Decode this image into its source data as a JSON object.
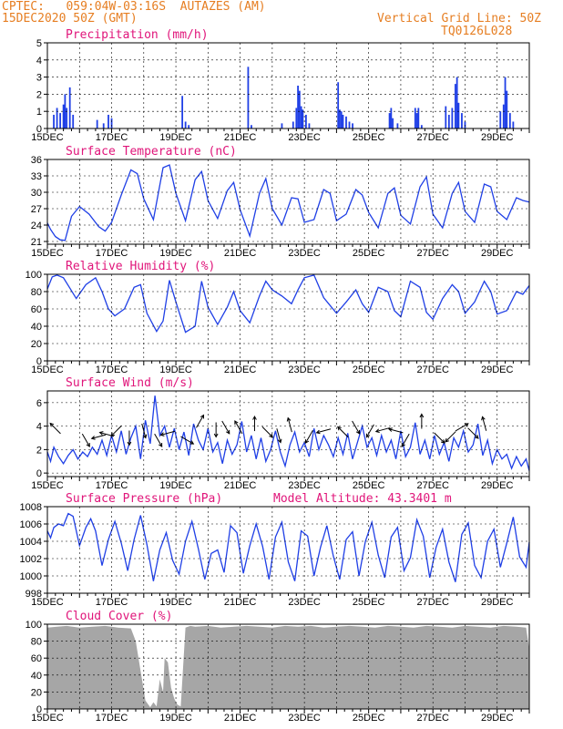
{
  "header": {
    "source": "CPTEC:",
    "location": "059:04W-03:16S  AUTAZES (AM)",
    "run": "15DEC2020 50Z (GMT)",
    "grid_note": "Vertical Grid Line: 50Z",
    "code": "TQ0126L028"
  },
  "colors": {
    "line": "#1f3fe6",
    "title": "#e0157a",
    "header": "#e67e22",
    "cloud": "#a6a6a6"
  },
  "chart_data": [
    {
      "type": "bar",
      "title": "Precipitation (mm/h)",
      "xlabel": "",
      "ylabel": "",
      "xlim": [
        0,
        15
      ],
      "ylim": [
        0,
        5
      ],
      "yticks": [
        "0",
        "1",
        "2",
        "3",
        "4",
        "5"
      ],
      "xticks": [
        "15DEC",
        "17DEC",
        "19DEC",
        "21DEC",
        "23DEC",
        "25DEC",
        "27DEC",
        "29DEC"
      ],
      "x": [
        0.2,
        0.3,
        0.4,
        0.5,
        0.55,
        0.6,
        0.7,
        0.8,
        1.55,
        1.75,
        1.9,
        2.0,
        4.2,
        4.3,
        4.4,
        6.25,
        6.35,
        7.3,
        7.65,
        7.75,
        7.8,
        7.85,
        7.9,
        7.95,
        8.05,
        8.15,
        9.05,
        9.1,
        9.15,
        9.2,
        9.3,
        9.4,
        9.5,
        10.65,
        10.7,
        10.75,
        10.9,
        11.45,
        11.5,
        11.55,
        11.65,
        12.4,
        12.5,
        12.6,
        12.7,
        12.75,
        12.8,
        12.9,
        13.0,
        14.1,
        14.2,
        14.25,
        14.3,
        14.4,
        14.5
      ],
      "values": [
        0.8,
        1.2,
        0.9,
        1.4,
        2.0,
        1.2,
        2.4,
        0.8,
        0.5,
        0.3,
        0.8,
        0.6,
        1.9,
        0.4,
        0.2,
        3.6,
        0.2,
        0.3,
        0.4,
        1.2,
        2.5,
        2.2,
        1.3,
        1.1,
        0.8,
        0.3,
        2.7,
        1.1,
        1.0,
        0.8,
        0.7,
        0.4,
        0.3,
        0.9,
        1.2,
        0.6,
        0.3,
        1.2,
        0.9,
        1.2,
        0.2,
        1.3,
        0.8,
        1.2,
        2.6,
        3.0,
        1.5,
        0.9,
        0.4,
        1.0,
        1.4,
        3.0,
        2.2,
        0.9,
        0.4
      ]
    },
    {
      "type": "line",
      "title": "Surface Temperature (nC)",
      "xlabel": "",
      "ylabel": "",
      "xlim": [
        0,
        15
      ],
      "ylim": [
        20.5,
        36
      ],
      "yticks": [
        "21",
        "24",
        "27",
        "30",
        "33",
        "36"
      ],
      "xticks": [
        "15DEC",
        "17DEC",
        "19DEC",
        "21DEC",
        "23DEC",
        "25DEC",
        "27DEC",
        "29DEC"
      ],
      "x": [
        0,
        0.1,
        0.25,
        0.4,
        0.55,
        0.75,
        1.0,
        1.3,
        1.6,
        1.8,
        2.0,
        2.3,
        2.6,
        2.8,
        3.0,
        3.3,
        3.6,
        3.8,
        4.0,
        4.3,
        4.6,
        4.8,
        5.0,
        5.3,
        5.6,
        5.8,
        6.0,
        6.3,
        6.6,
        6.8,
        7.0,
        7.3,
        7.6,
        7.8,
        8.0,
        8.3,
        8.6,
        8.8,
        9.0,
        9.3,
        9.6,
        9.8,
        10.0,
        10.3,
        10.6,
        10.8,
        11.0,
        11.3,
        11.6,
        11.8,
        12.0,
        12.3,
        12.6,
        12.8,
        13.0,
        13.3,
        13.6,
        13.8,
        14.0,
        14.3,
        14.6,
        14.8,
        15.0
      ],
      "values": [
        24.4,
        23.2,
        21.9,
        21.3,
        21.2,
        25.6,
        27.4,
        26.0,
        23.7,
        22.9,
        24.5,
        29.5,
        34.1,
        33.4,
        28.8,
        25.0,
        34.5,
        35.0,
        29.8,
        24.8,
        32.3,
        33.8,
        28.5,
        25.2,
        30.3,
        31.8,
        26.8,
        22.0,
        29.8,
        32.5,
        27.0,
        24.0,
        29.0,
        28.8,
        24.5,
        25.0,
        30.5,
        29.8,
        24.8,
        26.0,
        30.5,
        29.5,
        26.3,
        23.5,
        29.8,
        30.8,
        25.8,
        24.2,
        31.0,
        32.8,
        26.0,
        23.5,
        29.8,
        31.8,
        26.5,
        24.5,
        31.5,
        31.0,
        26.5,
        25.0,
        29.0,
        28.5,
        28.2
      ]
    },
    {
      "type": "line",
      "title": "Relative Humidity (%)",
      "xlabel": "",
      "ylabel": "",
      "xlim": [
        0,
        15
      ],
      "ylim": [
        0,
        100
      ],
      "yticks": [
        "0",
        "20",
        "40",
        "60",
        "80",
        "100"
      ],
      "xticks": [
        "15DEC",
        "17DEC",
        "19DEC",
        "21DEC",
        "23DEC",
        "25DEC",
        "27DEC",
        "29DEC"
      ],
      "x": [
        0,
        0.15,
        0.3,
        0.5,
        0.7,
        0.9,
        1.2,
        1.5,
        1.7,
        1.9,
        2.1,
        2.4,
        2.7,
        2.9,
        3.1,
        3.4,
        3.6,
        3.8,
        4.0,
        4.3,
        4.6,
        4.8,
        5.0,
        5.3,
        5.6,
        5.8,
        6.0,
        6.3,
        6.6,
        6.8,
        7.0,
        7.3,
        7.6,
        7.8,
        8.0,
        8.3,
        8.6,
        8.8,
        9.0,
        9.3,
        9.6,
        9.8,
        10.0,
        10.3,
        10.6,
        10.8,
        11.0,
        11.3,
        11.6,
        11.8,
        12.0,
        12.3,
        12.6,
        12.8,
        13.0,
        13.3,
        13.6,
        13.8,
        14.0,
        14.3,
        14.6,
        14.8,
        15.0
      ],
      "values": [
        83,
        97,
        99,
        96,
        84,
        72,
        88,
        96,
        80,
        60,
        52,
        60,
        85,
        88,
        55,
        34,
        46,
        93,
        68,
        33,
        40,
        92,
        62,
        42,
        62,
        80,
        58,
        44,
        75,
        92,
        82,
        75,
        66,
        82,
        96,
        99,
        73,
        64,
        55,
        68,
        82,
        66,
        56,
        85,
        80,
        58,
        51,
        92,
        85,
        56,
        48,
        72,
        88,
        80,
        55,
        68,
        92,
        80,
        54,
        58,
        80,
        77,
        87
      ]
    },
    {
      "type": "line",
      "title": "Surface Wind (m/s)",
      "xlabel": "",
      "ylabel": "",
      "xlim": [
        0,
        15
      ],
      "ylim": [
        -0.3,
        7
      ],
      "yticks": [
        "0",
        "2",
        "4",
        "6"
      ],
      "xticks": [
        "15DEC",
        "17DEC",
        "19DEC",
        "21DEC",
        "23DEC",
        "25DEC",
        "27DEC",
        "29DEC"
      ],
      "x": [
        0,
        0.1,
        0.2,
        0.35,
        0.5,
        0.65,
        0.8,
        0.95,
        1.1,
        1.25,
        1.4,
        1.55,
        1.7,
        1.85,
        2.0,
        2.15,
        2.3,
        2.45,
        2.6,
        2.75,
        2.9,
        3.05,
        3.2,
        3.35,
        3.5,
        3.65,
        3.8,
        3.95,
        4.1,
        4.25,
        4.4,
        4.55,
        4.7,
        4.85,
        5.0,
        5.15,
        5.3,
        5.45,
        5.6,
        5.75,
        5.9,
        6.05,
        6.2,
        6.35,
        6.5,
        6.65,
        6.8,
        6.95,
        7.1,
        7.25,
        7.4,
        7.55,
        7.7,
        7.85,
        8.0,
        8.15,
        8.3,
        8.45,
        8.6,
        8.75,
        8.9,
        9.05,
        9.2,
        9.35,
        9.5,
        9.65,
        9.8,
        9.95,
        10.1,
        10.25,
        10.4,
        10.55,
        10.7,
        10.85,
        11.0,
        11.15,
        11.3,
        11.45,
        11.6,
        11.75,
        11.9,
        12.05,
        12.2,
        12.35,
        12.5,
        12.65,
        12.8,
        12.95,
        13.1,
        13.25,
        13.4,
        13.55,
        13.7,
        13.85,
        14.0,
        14.15,
        14.3,
        14.45,
        14.6,
        14.75,
        14.9,
        15.0
      ],
      "values": [
        1.8,
        1.0,
        2.2,
        1.4,
        0.8,
        1.5,
        2.0,
        1.2,
        1.8,
        1.4,
        2.2,
        1.6,
        2.8,
        1.5,
        3.2,
        1.8,
        3.6,
        1.6,
        3.0,
        4.0,
        1.2,
        4.5,
        2.5,
        6.6,
        3.2,
        4.0,
        2.2,
        3.8,
        2.0,
        3.5,
        1.5,
        4.2,
        2.8,
        2.0,
        3.8,
        1.8,
        2.6,
        0.8,
        2.8,
        1.6,
        2.4,
        4.4,
        1.8,
        3.2,
        1.2,
        3.0,
        1.0,
        2.0,
        3.6,
        1.8,
        0.6,
        2.4,
        3.5,
        1.8,
        2.6,
        1.4,
        3.8,
        2.0,
        3.2,
        2.4,
        1.4,
        3.0,
        1.6,
        3.4,
        1.2,
        2.6,
        4.0,
        2.2,
        3.0,
        1.5,
        3.2,
        1.8,
        2.8,
        1.2,
        3.6,
        1.4,
        2.2,
        4.3,
        1.6,
        2.8,
        1.2,
        3.2,
        1.6,
        2.6,
        1.0,
        3.0,
        2.2,
        3.6,
        1.8,
        2.4,
        4.2,
        1.5,
        2.8,
        0.8,
        2.0,
        1.2,
        1.6,
        0.4,
        1.4,
        0.6,
        1.2,
        0.2
      ]
    },
    {
      "type": "line",
      "title": "Surface Pressure (hPa)",
      "annotation": "Model Altitude: 43.3401 m",
      "xlabel": "",
      "ylabel": "",
      "xlim": [
        0,
        15
      ],
      "ylim": [
        998,
        1008
      ],
      "yticks": [
        "998",
        "1000",
        "1002",
        "1004",
        "1006",
        "1008"
      ],
      "xticks": [
        "15DEC",
        "17DEC",
        "19DEC",
        "21DEC",
        "23DEC",
        "25DEC",
        "27DEC",
        "29DEC"
      ],
      "x": [
        0,
        0.1,
        0.2,
        0.35,
        0.5,
        0.65,
        0.8,
        1.0,
        1.2,
        1.35,
        1.5,
        1.7,
        1.9,
        2.1,
        2.3,
        2.5,
        2.7,
        2.9,
        3.1,
        3.3,
        3.5,
        3.7,
        3.9,
        4.1,
        4.3,
        4.5,
        4.7,
        4.9,
        5.1,
        5.3,
        5.5,
        5.7,
        5.9,
        6.1,
        6.3,
        6.5,
        6.7,
        6.9,
        7.1,
        7.3,
        7.5,
        7.7,
        7.9,
        8.1,
        8.3,
        8.5,
        8.7,
        8.9,
        9.1,
        9.3,
        9.5,
        9.7,
        9.9,
        10.1,
        10.3,
        10.5,
        10.7,
        10.9,
        11.1,
        11.3,
        11.5,
        11.7,
        11.9,
        12.1,
        12.3,
        12.5,
        12.7,
        12.9,
        13.1,
        13.3,
        13.5,
        13.7,
        13.9,
        14.1,
        14.3,
        14.5,
        14.7,
        14.9,
        15.0
      ],
      "values": [
        1005.2,
        1004.4,
        1005.6,
        1006.0,
        1005.8,
        1007.2,
        1006.9,
        1003.5,
        1005.6,
        1006.6,
        1005.2,
        1001.2,
        1004.2,
        1006.3,
        1003.8,
        1000.6,
        1004.2,
        1007.0,
        1003.6,
        999.4,
        1003.0,
        1005.0,
        1001.8,
        1000.2,
        1004.0,
        1006.3,
        1003.1,
        999.6,
        1002.6,
        1003.0,
        1000.4,
        1005.8,
        1005.0,
        1000.3,
        1003.5,
        1006.0,
        1003.4,
        999.6,
        1004.5,
        1006.2,
        1001.6,
        999.4,
        1005.2,
        1004.6,
        1000.0,
        1003.3,
        1005.8,
        1002.3,
        999.6,
        1004.2,
        1005.1,
        1000.0,
        1004.0,
        1006.2,
        1002.4,
        999.8,
        1004.5,
        1005.6,
        1000.6,
        1002.1,
        1006.5,
        1004.6,
        999.8,
        1003.3,
        1005.4,
        1001.6,
        999.3,
        1004.8,
        1006.1,
        1001.2,
        999.8,
        1004.0,
        1005.4,
        1001.0,
        1003.8,
        1006.8,
        1002.2,
        1001.0,
        1003.9
      ]
    },
    {
      "type": "area",
      "title": "Cloud Cover (%)",
      "xlabel": "",
      "ylabel": "",
      "xlim": [
        0,
        15
      ],
      "ylim": [
        0,
        100
      ],
      "yticks": [
        "0",
        "20",
        "40",
        "60",
        "80",
        "100"
      ],
      "xticks": [
        "15DEC",
        "17DEC",
        "19DEC",
        "21DEC",
        "23DEC",
        "25DEC",
        "27DEC",
        "29DEC"
      ],
      "x": [
        0,
        0.3,
        0.6,
        1.0,
        1.4,
        1.8,
        2.2,
        2.6,
        2.75,
        2.9,
        3.05,
        3.2,
        3.3,
        3.4,
        3.5,
        3.6,
        3.65,
        3.75,
        3.85,
        3.95,
        4.05,
        4.15,
        4.3,
        4.45,
        4.6,
        5.0,
        5.4,
        5.8,
        6.2,
        6.6,
        7.0,
        7.4,
        7.8,
        8.2,
        8.6,
        9.0,
        9.4,
        9.8,
        10.2,
        10.6,
        11.0,
        11.4,
        11.8,
        12.2,
        12.6,
        13.0,
        13.4,
        13.8,
        14.2,
        14.6,
        14.9,
        15.0
      ],
      "values": [
        96,
        97,
        98,
        96,
        97,
        98,
        96,
        95,
        80,
        45,
        10,
        2,
        8,
        3,
        35,
        20,
        60,
        55,
        25,
        12,
        5,
        3,
        96,
        98,
        97,
        98,
        96,
        97,
        98,
        97,
        96,
        98,
        97,
        98,
        96,
        97,
        98,
        97,
        96,
        98,
        97,
        96,
        98,
        97,
        96,
        98,
        97,
        96,
        98,
        97,
        96,
        70
      ]
    }
  ],
  "wind_arrows": [
    {
      "day": 0.25,
      "speed": 3.8,
      "dir_deg": 135
    },
    {
      "day": 1.2,
      "speed": 2.8,
      "dir_deg": 300
    },
    {
      "day": 1.6,
      "speed": 3.1,
      "dir_deg": 195
    },
    {
      "day": 1.85,
      "speed": 3.3,
      "dir_deg": 165
    },
    {
      "day": 2.15,
      "speed": 3.6,
      "dir_deg": 225
    },
    {
      "day": 2.55,
      "speed": 3.0,
      "dir_deg": 270
    },
    {
      "day": 3.0,
      "speed": 3.6,
      "dir_deg": 285
    },
    {
      "day": 3.45,
      "speed": 2.8,
      "dir_deg": 300
    },
    {
      "day": 3.75,
      "speed": 3.4,
      "dir_deg": 195
    },
    {
      "day": 4.35,
      "speed": 2.8,
      "dir_deg": 330
    },
    {
      "day": 4.75,
      "speed": 4.4,
      "dir_deg": 60
    },
    {
      "day": 5.25,
      "speed": 3.7,
      "dir_deg": 270
    },
    {
      "day": 5.55,
      "speed": 3.9,
      "dir_deg": 300
    },
    {
      "day": 5.95,
      "speed": 3.9,
      "dir_deg": 120
    },
    {
      "day": 6.45,
      "speed": 4.2,
      "dir_deg": 90
    },
    {
      "day": 6.85,
      "speed": 3.5,
      "dir_deg": 315
    },
    {
      "day": 7.2,
      "speed": 3.2,
      "dir_deg": 285
    },
    {
      "day": 7.55,
      "speed": 4.1,
      "dir_deg": 105
    },
    {
      "day": 8.15,
      "speed": 3.1,
      "dir_deg": 240
    },
    {
      "day": 8.6,
      "speed": 3.6,
      "dir_deg": 195
    },
    {
      "day": 9.2,
      "speed": 3.5,
      "dir_deg": 135
    },
    {
      "day": 9.6,
      "speed": 3.9,
      "dir_deg": 300
    },
    {
      "day": 10.05,
      "speed": 3.6,
      "dir_deg": 240
    },
    {
      "day": 10.45,
      "speed": 3.7,
      "dir_deg": 195
    },
    {
      "day": 10.85,
      "speed": 3.6,
      "dir_deg": 165
    },
    {
      "day": 11.15,
      "speed": 2.8,
      "dir_deg": 240
    },
    {
      "day": 11.65,
      "speed": 4.4,
      "dir_deg": 90
    },
    {
      "day": 12.2,
      "speed": 3.0,
      "dir_deg": 315
    },
    {
      "day": 12.55,
      "speed": 3.1,
      "dir_deg": 225
    },
    {
      "day": 12.9,
      "speed": 3.9,
      "dir_deg": 30
    },
    {
      "day": 13.25,
      "speed": 3.4,
      "dir_deg": 315
    },
    {
      "day": 13.6,
      "speed": 4.2,
      "dir_deg": 105
    }
  ]
}
